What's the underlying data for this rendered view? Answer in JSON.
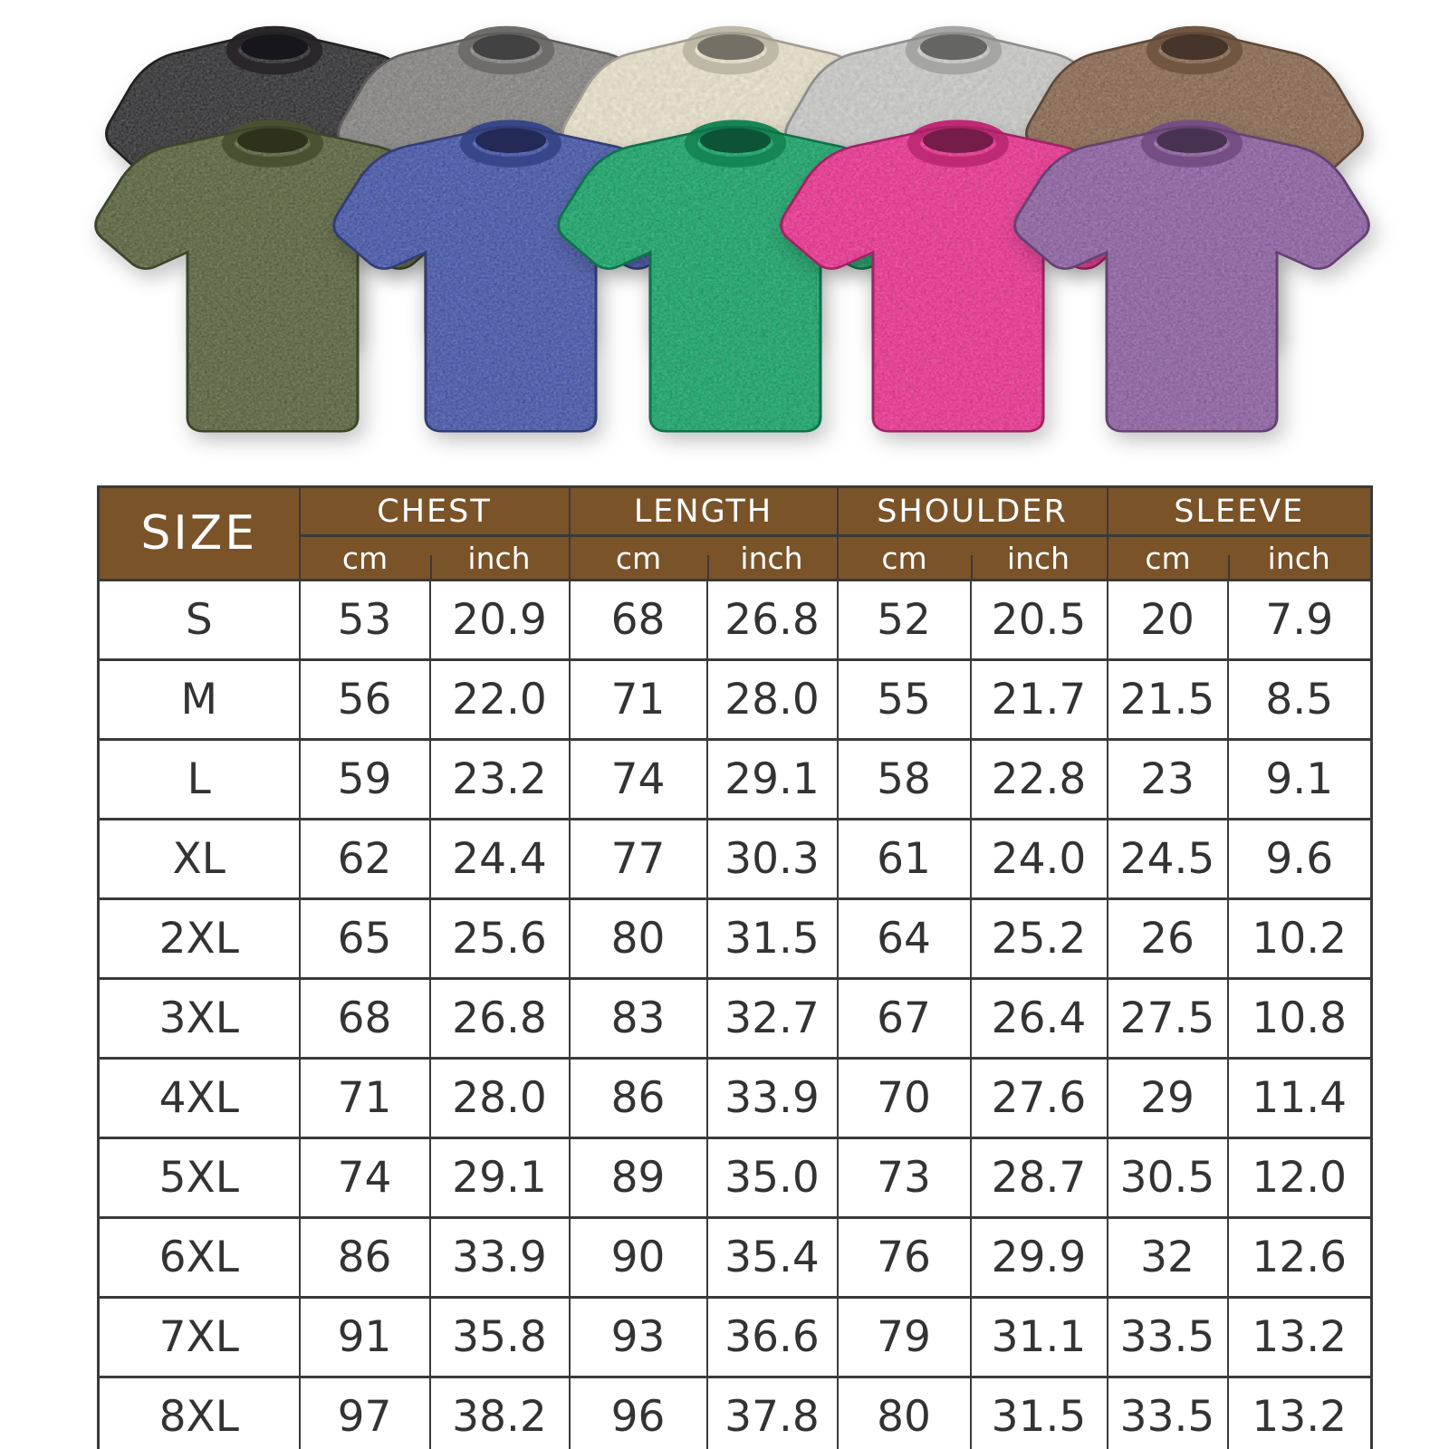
{
  "page": {
    "background": "#ffffff",
    "description": "washed cotton oversized t-shirt colorways with size chart"
  },
  "gallery": {
    "back_row": [
      {
        "name": "washed-black",
        "color": "#323133"
      },
      {
        "name": "washed-gray",
        "color": "#868583"
      },
      {
        "name": "cream",
        "color": "#e8e0cb"
      },
      {
        "name": "light-gray",
        "color": "#c9c9c7"
      },
      {
        "name": "brown",
        "color": "#8a6951"
      }
    ],
    "front_row": [
      {
        "name": "army-green",
        "color": "#59633e"
      },
      {
        "name": "washed-blue",
        "color": "#4656a8"
      },
      {
        "name": "green",
        "color": "#18a367"
      },
      {
        "name": "rose-pink",
        "color": "#e9338f"
      },
      {
        "name": "purple",
        "color": "#8d60a1"
      }
    ]
  },
  "size_chart": {
    "corner_label": "SIZE",
    "header_bg": "#7a5329",
    "header_text_color": "#ffffff",
    "grid_color": "#3a3a3a",
    "groups": [
      {
        "label": "CHEST",
        "units": [
          "cm",
          "inch"
        ]
      },
      {
        "label": "LENGTH",
        "units": [
          "cm",
          "inch"
        ]
      },
      {
        "label": "SHOULDER",
        "units": [
          "cm",
          "inch"
        ]
      },
      {
        "label": "SLEEVE",
        "units": [
          "cm",
          "inch"
        ]
      }
    ],
    "rows": [
      {
        "size": "S",
        "values": [
          "53",
          "20.9",
          "68",
          "26.8",
          "52",
          "20.5",
          "20",
          "7.9"
        ]
      },
      {
        "size": "M",
        "values": [
          "56",
          "22.0",
          "71",
          "28.0",
          "55",
          "21.7",
          "21.5",
          "8.5"
        ]
      },
      {
        "size": "L",
        "values": [
          "59",
          "23.2",
          "74",
          "29.1",
          "58",
          "22.8",
          "23",
          "9.1"
        ]
      },
      {
        "size": "XL",
        "values": [
          "62",
          "24.4",
          "77",
          "30.3",
          "61",
          "24.0",
          "24.5",
          "9.6"
        ]
      },
      {
        "size": "2XL",
        "values": [
          "65",
          "25.6",
          "80",
          "31.5",
          "64",
          "25.2",
          "26",
          "10.2"
        ]
      },
      {
        "size": "3XL",
        "values": [
          "68",
          "26.8",
          "83",
          "32.7",
          "67",
          "26.4",
          "27.5",
          "10.8"
        ]
      },
      {
        "size": "4XL",
        "values": [
          "71",
          "28.0",
          "86",
          "33.9",
          "70",
          "27.6",
          "29",
          "11.4"
        ]
      },
      {
        "size": "5XL",
        "values": [
          "74",
          "29.1",
          "89",
          "35.0",
          "73",
          "28.7",
          "30.5",
          "12.0"
        ]
      },
      {
        "size": "6XL",
        "values": [
          "86",
          "33.9",
          "90",
          "35.4",
          "76",
          "29.9",
          "32",
          "12.6"
        ]
      },
      {
        "size": "7XL",
        "values": [
          "91",
          "35.8",
          "93",
          "36.6",
          "79",
          "31.1",
          "33.5",
          "13.2"
        ]
      },
      {
        "size": "8XL",
        "values": [
          "97",
          "38.2",
          "96",
          "37.8",
          "80",
          "31.5",
          "33.5",
          "13.2"
        ]
      }
    ]
  }
}
